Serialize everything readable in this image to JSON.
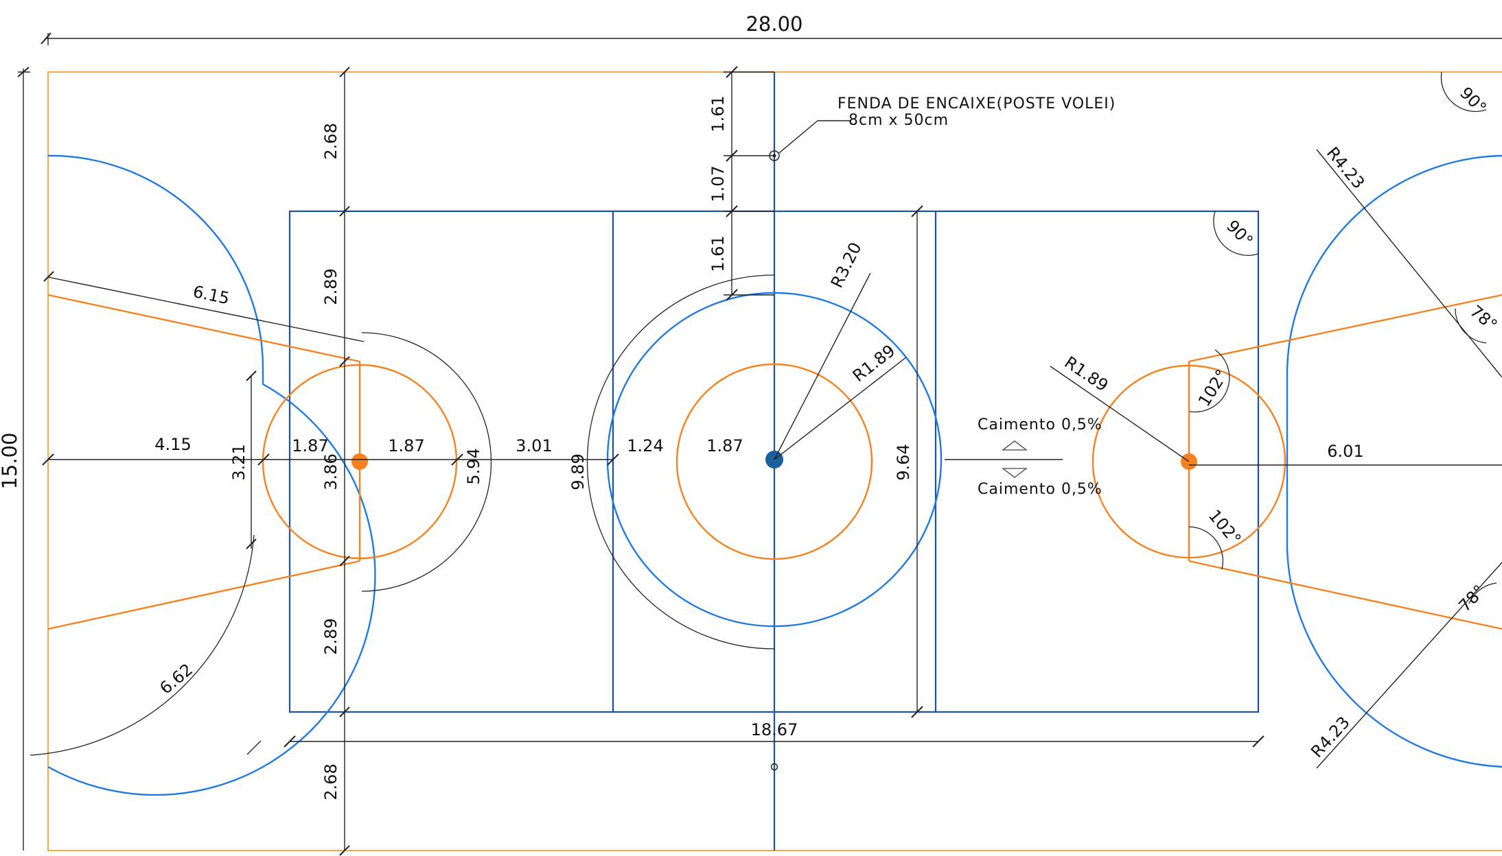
{
  "dimensions": {
    "overall_length": "28.00",
    "overall_width": "15.00",
    "court_length": "18.67",
    "left": {
      "top_clearance": "2.68",
      "upper_gap": "2.89",
      "lower_gap": "2.89",
      "bottom_clearance": "2.68",
      "lane_width": "3.86",
      "key_width": "3.21",
      "baseline_to_circle": "4.15",
      "circle_left": "1.87",
      "circle_right": "1.87",
      "to_center": "3.01",
      "corner_line": "6.15",
      "arc_diameter": "5.94",
      "three_point_arc": "6.62"
    },
    "center": {
      "top_a": "1.61",
      "top_b": "1.07",
      "top_c": "1.61",
      "radius_outer": "R3.20",
      "radius_inner": "R1.89",
      "left_gap": "1.24",
      "inner_radius_value": "1.87",
      "arc_diameter": "9.89",
      "court_width": "9.64"
    },
    "right": {
      "radius": "R1.89",
      "to_baseline": "6.01",
      "angle_upper": "102°",
      "angle_lower": "102°",
      "angle_78_upper": "78°",
      "angle_78_lower": "78°",
      "radius_upper": "R4.23",
      "radius_lower": "R4.23",
      "corner_top_right": "90°",
      "court_corner": "90°"
    }
  },
  "notes": {
    "post_slot_line1": "FENDA DE ENCAIXE(POSTE VOLEI)",
    "post_slot_line2": "8cm  x  50cm",
    "slope_up": "Caimento  0,5%",
    "slope_down": "Caimento  0,5%"
  },
  "colors": {
    "boundary": "#f3a94a",
    "court_lines": "#1c4f9e",
    "arcs": "#1e7ae0",
    "key": "#f5821f",
    "center_dot": "#1a5f9e",
    "dimension": "#222222"
  }
}
